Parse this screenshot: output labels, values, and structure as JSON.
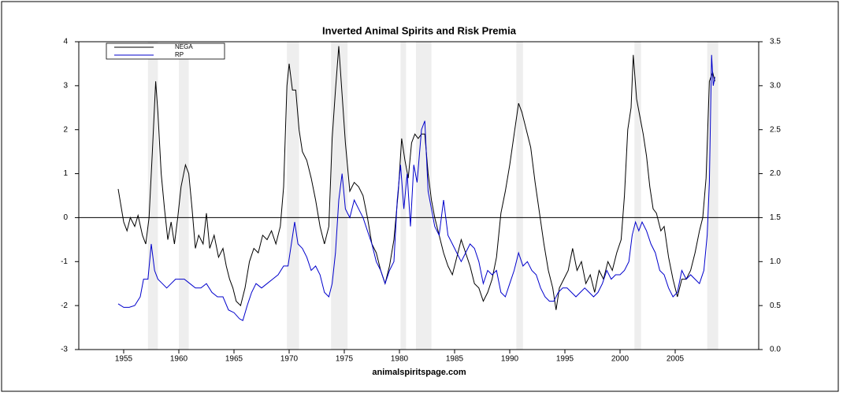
{
  "chart_data": {
    "type": "line",
    "title": "Inverted Animal Spirits and Risk Premia",
    "source": "animalspiritspage.com",
    "xlim": [
      1950.93,
      2012.57
    ],
    "xticks": [
      1955,
      1960,
      1965,
      1970,
      1975,
      1980,
      1985,
      1990,
      1995,
      2000,
      2005
    ],
    "ylim": [
      -3,
      4
    ],
    "yticks": [
      -3,
      -2,
      -1,
      0,
      1,
      2,
      3,
      4
    ],
    "y2lim": [
      0,
      3.5
    ],
    "y2ticks": [
      {
        "value": 0,
        "label": "0.0"
      },
      {
        "value": 0.5,
        "label": "0.5"
      },
      {
        "value": 1,
        "label": "1.0"
      },
      {
        "value": 1.5,
        "label": "1.5"
      },
      {
        "value": 2,
        "label": "2.0"
      },
      {
        "value": 2.5,
        "label": "2.5"
      },
      {
        "value": 3,
        "label": "3.0"
      },
      {
        "value": 3.5,
        "label": "3.5"
      }
    ],
    "hline": 0,
    "shade_color": "#eeeeee",
    "shaded_periods": [
      [
        1957.2,
        1958.1
      ],
      [
        1960.0,
        1960.9
      ],
      [
        1969.8,
        1970.9
      ],
      [
        1973.8,
        1975.3
      ],
      [
        1980.1,
        1980.6
      ],
      [
        1981.5,
        1982.9
      ],
      [
        1990.6,
        1991.2
      ],
      [
        2001.3,
        2001.9
      ],
      [
        2007.9,
        2008.9
      ]
    ],
    "legend": "upper left",
    "series": [
      {
        "name": "NEGA",
        "color": "#000000",
        "x": [
          1954.5,
          1954.8,
          1955.0,
          1955.3,
          1955.6,
          1956.0,
          1956.3,
          1956.7,
          1957.0,
          1957.3,
          1957.6,
          1957.9,
          1958.1,
          1958.4,
          1958.7,
          1959.0,
          1959.3,
          1959.6,
          1959.9,
          1960.2,
          1960.6,
          1960.9,
          1961.2,
          1961.5,
          1961.8,
          1962.2,
          1962.5,
          1962.8,
          1963.2,
          1963.6,
          1964.0,
          1964.3,
          1964.6,
          1964.9,
          1965.2,
          1965.6,
          1966.0,
          1966.4,
          1966.8,
          1967.2,
          1967.6,
          1968.0,
          1968.4,
          1968.8,
          1969.2,
          1969.5,
          1969.8,
          1970.0,
          1970.3,
          1970.6,
          1970.9,
          1971.2,
          1971.6,
          1972.0,
          1972.4,
          1972.8,
          1973.2,
          1973.6,
          1973.9,
          1974.2,
          1974.5,
          1974.8,
          1975.1,
          1975.5,
          1975.9,
          1976.3,
          1976.7,
          1977.1,
          1977.5,
          1977.9,
          1978.3,
          1978.7,
          1979.1,
          1979.5,
          1979.9,
          1980.2,
          1980.5,
          1980.8,
          1981.1,
          1981.4,
          1981.7,
          1982.0,
          1982.3,
          1982.6,
          1982.9,
          1983.2,
          1983.6,
          1984.0,
          1984.4,
          1984.8,
          1985.2,
          1985.6,
          1986.0,
          1986.4,
          1986.8,
          1987.2,
          1987.6,
          1988.0,
          1988.4,
          1988.8,
          1989.2,
          1989.6,
          1990.0,
          1990.4,
          1990.8,
          1991.1,
          1991.5,
          1991.9,
          1992.3,
          1992.7,
          1993.1,
          1993.5,
          1993.9,
          1994.2,
          1994.5,
          1994.9,
          1995.3,
          1995.7,
          1996.1,
          1996.5,
          1996.9,
          1997.3,
          1997.7,
          1998.1,
          1998.5,
          1998.9,
          1999.3,
          1999.7,
          2000.1,
          2000.4,
          2000.7,
          2001.0,
          2001.2,
          2001.5,
          2001.8,
          2002.1,
          2002.4,
          2002.7,
          2003.0,
          2003.3,
          2003.7,
          2004.0,
          2004.4,
          2004.8,
          2005.2,
          2005.6,
          2006.0,
          2006.4,
          2006.8,
          2007.2,
          2007.5,
          2007.8,
          2008.1,
          2008.4,
          2008.6
        ],
        "values": [
          0.65,
          0.2,
          -0.1,
          -0.3,
          0.0,
          -0.2,
          0.05,
          -0.4,
          -0.6,
          0.0,
          1.5,
          3.1,
          2.4,
          1.0,
          0.2,
          -0.5,
          -0.1,
          -0.6,
          0.0,
          0.7,
          1.2,
          1.0,
          0.2,
          -0.7,
          -0.4,
          -0.6,
          0.1,
          -0.7,
          -0.4,
          -0.9,
          -0.7,
          -1.1,
          -1.4,
          -1.6,
          -1.9,
          -2.0,
          -1.6,
          -1.0,
          -0.7,
          -0.8,
          -0.4,
          -0.5,
          -0.3,
          -0.6,
          -0.2,
          0.7,
          3.0,
          3.5,
          2.9,
          2.9,
          2.0,
          1.5,
          1.3,
          0.9,
          0.4,
          -0.2,
          -0.6,
          -0.2,
          1.8,
          2.9,
          3.9,
          2.8,
          1.7,
          0.6,
          0.8,
          0.7,
          0.5,
          0.0,
          -0.6,
          -0.8,
          -1.2,
          -1.5,
          -1.1,
          -0.5,
          0.6,
          1.8,
          1.3,
          0.9,
          1.7,
          1.9,
          1.8,
          1.9,
          1.9,
          1.0,
          0.4,
          0.0,
          -0.4,
          -0.8,
          -1.1,
          -1.3,
          -0.9,
          -0.5,
          -0.8,
          -1.1,
          -1.5,
          -1.6,
          -1.9,
          -1.7,
          -1.4,
          -0.9,
          0.1,
          0.6,
          1.2,
          1.9,
          2.6,
          2.4,
          2.0,
          1.6,
          0.8,
          0.1,
          -0.6,
          -1.2,
          -1.6,
          -2.1,
          -1.6,
          -1.4,
          -1.2,
          -0.7,
          -1.2,
          -1.0,
          -1.5,
          -1.3,
          -1.7,
          -1.2,
          -1.4,
          -1.0,
          -1.2,
          -0.8,
          -0.5,
          0.5,
          2.0,
          2.5,
          3.7,
          2.7,
          2.3,
          1.9,
          1.4,
          0.7,
          0.2,
          0.1,
          -0.3,
          -0.2,
          -0.9,
          -1.4,
          -1.8,
          -1.4,
          -1.4,
          -1.2,
          -0.8,
          -0.3,
          0.0,
          0.9,
          3.1,
          3.3,
          3.1
        ]
      },
      {
        "name": "RP",
        "color": "#0000cc",
        "axis": "y2",
        "x": [
          1954.5,
          1955.0,
          1955.5,
          1956.0,
          1956.5,
          1956.8,
          1957.2,
          1957.5,
          1957.8,
          1958.1,
          1958.5,
          1958.9,
          1959.3,
          1959.7,
          1960.0,
          1960.5,
          1961.0,
          1961.5,
          1962.0,
          1962.5,
          1963.0,
          1963.5,
          1964.0,
          1964.5,
          1965.0,
          1965.5,
          1965.8,
          1966.2,
          1966.6,
          1967.0,
          1967.5,
          1968.0,
          1968.5,
          1969.0,
          1969.5,
          1969.9,
          1970.2,
          1970.5,
          1970.8,
          1971.2,
          1971.6,
          1972.0,
          1972.4,
          1972.8,
          1973.2,
          1973.6,
          1973.9,
          1974.2,
          1974.5,
          1974.8,
          1975.1,
          1975.5,
          1975.9,
          1976.3,
          1976.7,
          1977.1,
          1977.5,
          1977.9,
          1978.3,
          1978.7,
          1979.1,
          1979.5,
          1979.8,
          1980.1,
          1980.4,
          1980.7,
          1981.0,
          1981.3,
          1981.6,
          1982.0,
          1982.3,
          1982.6,
          1982.9,
          1983.2,
          1983.6,
          1984.0,
          1984.4,
          1984.8,
          1985.2,
          1985.6,
          1986.0,
          1986.4,
          1986.8,
          1987.2,
          1987.6,
          1988.0,
          1988.4,
          1988.8,
          1989.2,
          1989.6,
          1990.0,
          1990.4,
          1990.8,
          1991.2,
          1991.6,
          1992.0,
          1992.4,
          1992.8,
          1993.2,
          1993.6,
          1994.0,
          1994.4,
          1994.8,
          1995.2,
          1995.6,
          1996.0,
          1996.4,
          1996.8,
          1997.2,
          1997.6,
          1998.0,
          1998.4,
          1998.8,
          1999.2,
          1999.6,
          2000.0,
          2000.4,
          2000.8,
          2001.1,
          2001.4,
          2001.7,
          2002.0,
          2002.4,
          2002.8,
          2003.2,
          2003.6,
          2004.0,
          2004.4,
          2004.8,
          2005.2,
          2005.6,
          2006.0,
          2006.4,
          2006.8,
          2007.2,
          2007.6,
          2007.9,
          2008.1,
          2008.3,
          2008.45,
          2008.6
        ],
        "values": [
          0.52,
          0.48,
          0.48,
          0.5,
          0.6,
          0.8,
          0.8,
          1.2,
          0.9,
          0.8,
          0.75,
          0.7,
          0.75,
          0.8,
          0.8,
          0.8,
          0.75,
          0.7,
          0.7,
          0.75,
          0.65,
          0.6,
          0.6,
          0.45,
          0.42,
          0.35,
          0.33,
          0.5,
          0.65,
          0.75,
          0.7,
          0.75,
          0.8,
          0.85,
          0.95,
          0.95,
          1.2,
          1.45,
          1.2,
          1.15,
          1.05,
          0.9,
          0.95,
          0.85,
          0.65,
          0.6,
          0.75,
          1.1,
          1.7,
          2.0,
          1.6,
          1.5,
          1.7,
          1.6,
          1.5,
          1.35,
          1.2,
          1.0,
          0.9,
          0.75,
          0.9,
          1.0,
          1.7,
          2.1,
          1.6,
          2.0,
          1.4,
          2.1,
          1.9,
          2.5,
          2.6,
          1.8,
          1.6,
          1.4,
          1.3,
          1.7,
          1.3,
          1.2,
          1.1,
          1.0,
          1.1,
          1.2,
          1.15,
          1.0,
          0.75,
          0.9,
          0.85,
          0.9,
          0.65,
          0.6,
          0.75,
          0.9,
          1.1,
          0.95,
          1.0,
          0.9,
          0.85,
          0.7,
          0.6,
          0.55,
          0.55,
          0.65,
          0.7,
          0.7,
          0.65,
          0.6,
          0.65,
          0.7,
          0.65,
          0.6,
          0.65,
          0.75,
          0.9,
          0.8,
          0.85,
          0.85,
          0.9,
          1.0,
          1.3,
          1.45,
          1.35,
          1.45,
          1.35,
          1.2,
          1.1,
          0.9,
          0.85,
          0.7,
          0.6,
          0.65,
          0.9,
          0.8,
          0.85,
          0.8,
          0.75,
          0.9,
          1.3,
          1.9,
          3.35,
          3.0,
          3.1
        ]
      }
    ]
  }
}
